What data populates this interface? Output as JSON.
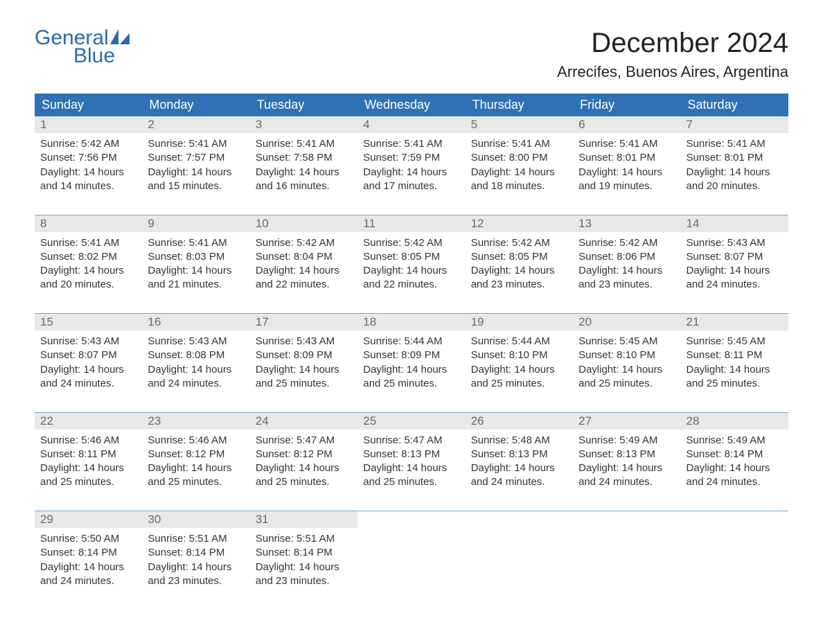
{
  "logo": {
    "text_general": "General",
    "text_blue": "Blue",
    "brand_color": "#2b6aa8"
  },
  "title": "December 2024",
  "location": "Arrecifes, Buenos Aires, Argentina",
  "colors": {
    "header_bg": "#2e72b5",
    "header_fg": "#ffffff",
    "daynum_bg": "#e8e8e8",
    "daynum_fg": "#6a6a6a",
    "row_divider": "#7aa6d2",
    "text": "#333333",
    "page_bg": "#ffffff"
  },
  "day_headers": [
    "Sunday",
    "Monday",
    "Tuesday",
    "Wednesday",
    "Thursday",
    "Friday",
    "Saturday"
  ],
  "weeks": [
    [
      {
        "day": "1",
        "sunrise": "Sunrise: 5:42 AM",
        "sunset": "Sunset: 7:56 PM",
        "daylight1": "Daylight: 14 hours",
        "daylight2": "and 14 minutes."
      },
      {
        "day": "2",
        "sunrise": "Sunrise: 5:41 AM",
        "sunset": "Sunset: 7:57 PM",
        "daylight1": "Daylight: 14 hours",
        "daylight2": "and 15 minutes."
      },
      {
        "day": "3",
        "sunrise": "Sunrise: 5:41 AM",
        "sunset": "Sunset: 7:58 PM",
        "daylight1": "Daylight: 14 hours",
        "daylight2": "and 16 minutes."
      },
      {
        "day": "4",
        "sunrise": "Sunrise: 5:41 AM",
        "sunset": "Sunset: 7:59 PM",
        "daylight1": "Daylight: 14 hours",
        "daylight2": "and 17 minutes."
      },
      {
        "day": "5",
        "sunrise": "Sunrise: 5:41 AM",
        "sunset": "Sunset: 8:00 PM",
        "daylight1": "Daylight: 14 hours",
        "daylight2": "and 18 minutes."
      },
      {
        "day": "6",
        "sunrise": "Sunrise: 5:41 AM",
        "sunset": "Sunset: 8:01 PM",
        "daylight1": "Daylight: 14 hours",
        "daylight2": "and 19 minutes."
      },
      {
        "day": "7",
        "sunrise": "Sunrise: 5:41 AM",
        "sunset": "Sunset: 8:01 PM",
        "daylight1": "Daylight: 14 hours",
        "daylight2": "and 20 minutes."
      }
    ],
    [
      {
        "day": "8",
        "sunrise": "Sunrise: 5:41 AM",
        "sunset": "Sunset: 8:02 PM",
        "daylight1": "Daylight: 14 hours",
        "daylight2": "and 20 minutes."
      },
      {
        "day": "9",
        "sunrise": "Sunrise: 5:41 AM",
        "sunset": "Sunset: 8:03 PM",
        "daylight1": "Daylight: 14 hours",
        "daylight2": "and 21 minutes."
      },
      {
        "day": "10",
        "sunrise": "Sunrise: 5:42 AM",
        "sunset": "Sunset: 8:04 PM",
        "daylight1": "Daylight: 14 hours",
        "daylight2": "and 22 minutes."
      },
      {
        "day": "11",
        "sunrise": "Sunrise: 5:42 AM",
        "sunset": "Sunset: 8:05 PM",
        "daylight1": "Daylight: 14 hours",
        "daylight2": "and 22 minutes."
      },
      {
        "day": "12",
        "sunrise": "Sunrise: 5:42 AM",
        "sunset": "Sunset: 8:05 PM",
        "daylight1": "Daylight: 14 hours",
        "daylight2": "and 23 minutes."
      },
      {
        "day": "13",
        "sunrise": "Sunrise: 5:42 AM",
        "sunset": "Sunset: 8:06 PM",
        "daylight1": "Daylight: 14 hours",
        "daylight2": "and 23 minutes."
      },
      {
        "day": "14",
        "sunrise": "Sunrise: 5:43 AM",
        "sunset": "Sunset: 8:07 PM",
        "daylight1": "Daylight: 14 hours",
        "daylight2": "and 24 minutes."
      }
    ],
    [
      {
        "day": "15",
        "sunrise": "Sunrise: 5:43 AM",
        "sunset": "Sunset: 8:07 PM",
        "daylight1": "Daylight: 14 hours",
        "daylight2": "and 24 minutes."
      },
      {
        "day": "16",
        "sunrise": "Sunrise: 5:43 AM",
        "sunset": "Sunset: 8:08 PM",
        "daylight1": "Daylight: 14 hours",
        "daylight2": "and 24 minutes."
      },
      {
        "day": "17",
        "sunrise": "Sunrise: 5:43 AM",
        "sunset": "Sunset: 8:09 PM",
        "daylight1": "Daylight: 14 hours",
        "daylight2": "and 25 minutes."
      },
      {
        "day": "18",
        "sunrise": "Sunrise: 5:44 AM",
        "sunset": "Sunset: 8:09 PM",
        "daylight1": "Daylight: 14 hours",
        "daylight2": "and 25 minutes."
      },
      {
        "day": "19",
        "sunrise": "Sunrise: 5:44 AM",
        "sunset": "Sunset: 8:10 PM",
        "daylight1": "Daylight: 14 hours",
        "daylight2": "and 25 minutes."
      },
      {
        "day": "20",
        "sunrise": "Sunrise: 5:45 AM",
        "sunset": "Sunset: 8:10 PM",
        "daylight1": "Daylight: 14 hours",
        "daylight2": "and 25 minutes."
      },
      {
        "day": "21",
        "sunrise": "Sunrise: 5:45 AM",
        "sunset": "Sunset: 8:11 PM",
        "daylight1": "Daylight: 14 hours",
        "daylight2": "and 25 minutes."
      }
    ],
    [
      {
        "day": "22",
        "sunrise": "Sunrise: 5:46 AM",
        "sunset": "Sunset: 8:11 PM",
        "daylight1": "Daylight: 14 hours",
        "daylight2": "and 25 minutes."
      },
      {
        "day": "23",
        "sunrise": "Sunrise: 5:46 AM",
        "sunset": "Sunset: 8:12 PM",
        "daylight1": "Daylight: 14 hours",
        "daylight2": "and 25 minutes."
      },
      {
        "day": "24",
        "sunrise": "Sunrise: 5:47 AM",
        "sunset": "Sunset: 8:12 PM",
        "daylight1": "Daylight: 14 hours",
        "daylight2": "and 25 minutes."
      },
      {
        "day": "25",
        "sunrise": "Sunrise: 5:47 AM",
        "sunset": "Sunset: 8:13 PM",
        "daylight1": "Daylight: 14 hours",
        "daylight2": "and 25 minutes."
      },
      {
        "day": "26",
        "sunrise": "Sunrise: 5:48 AM",
        "sunset": "Sunset: 8:13 PM",
        "daylight1": "Daylight: 14 hours",
        "daylight2": "and 24 minutes."
      },
      {
        "day": "27",
        "sunrise": "Sunrise: 5:49 AM",
        "sunset": "Sunset: 8:13 PM",
        "daylight1": "Daylight: 14 hours",
        "daylight2": "and 24 minutes."
      },
      {
        "day": "28",
        "sunrise": "Sunrise: 5:49 AM",
        "sunset": "Sunset: 8:14 PM",
        "daylight1": "Daylight: 14 hours",
        "daylight2": "and 24 minutes."
      }
    ],
    [
      {
        "day": "29",
        "sunrise": "Sunrise: 5:50 AM",
        "sunset": "Sunset: 8:14 PM",
        "daylight1": "Daylight: 14 hours",
        "daylight2": "and 24 minutes."
      },
      {
        "day": "30",
        "sunrise": "Sunrise: 5:51 AM",
        "sunset": "Sunset: 8:14 PM",
        "daylight1": "Daylight: 14 hours",
        "daylight2": "and 23 minutes."
      },
      {
        "day": "31",
        "sunrise": "Sunrise: 5:51 AM",
        "sunset": "Sunset: 8:14 PM",
        "daylight1": "Daylight: 14 hours",
        "daylight2": "and 23 minutes."
      },
      null,
      null,
      null,
      null
    ]
  ]
}
